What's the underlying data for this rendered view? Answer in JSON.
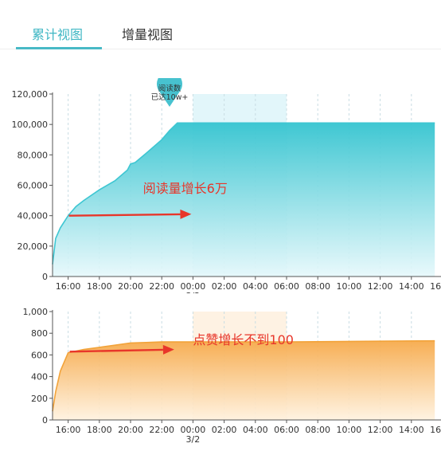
{
  "tabs": [
    {
      "label": "累计视图",
      "active": true
    },
    {
      "label": "增量视图",
      "active": false
    }
  ],
  "colors": {
    "accent": "#48b9c6",
    "reads_line": "#3ec6d2",
    "likes_line": "#f2a33a",
    "arrow": "#e8362a"
  },
  "chart_data": [
    {
      "type": "area",
      "series": [
        {
          "name": "阅读数"
        }
      ],
      "ylim": [
        0,
        120000
      ],
      "y_ticks": [
        "0",
        "20,000",
        "40,000",
        "60,000",
        "80,000",
        "100,000",
        "120,000"
      ],
      "x_ticks": [
        "16:00",
        "18:00",
        "20:00",
        "22:00",
        "00:00",
        "02:00",
        "04:00",
        "06:00",
        "08:00",
        "10:00",
        "12:00",
        "14:00",
        "16:00"
      ],
      "date_label": "3/2",
      "x": [
        15.0,
        15.2,
        15.5,
        16.0,
        16.5,
        17.0,
        18.0,
        19.0,
        19.8,
        20.0,
        20.3,
        21.0,
        22.0,
        22.5,
        23.0,
        24.0,
        30.0,
        39.5
      ],
      "values": [
        8000,
        25000,
        32000,
        40000,
        46000,
        50000,
        57000,
        63000,
        70000,
        74000,
        75000,
        81000,
        90000,
        96000,
        101000,
        101000,
        101000,
        101000
      ],
      "highlight_band": [
        24.0,
        30.0
      ],
      "pin": {
        "line1": "阅读数",
        "line2": "已达10w+"
      },
      "annotation": "阅读量增长6万"
    },
    {
      "type": "area",
      "series": [
        {
          "name": "点赞"
        }
      ],
      "ylim": [
        0,
        1000
      ],
      "y_ticks": [
        "0",
        "200",
        "400",
        "600",
        "800",
        "1,000"
      ],
      "x_ticks": [
        "16:00",
        "18:00",
        "20:00",
        "22:00",
        "00:00",
        "02:00",
        "04:00",
        "06:00",
        "08:00",
        "10:00",
        "12:00",
        "14:00",
        "16:00"
      ],
      "date_label": "3/2",
      "x": [
        15.0,
        15.2,
        15.5,
        16.0,
        17.0,
        18.0,
        19.0,
        20.0,
        21.0,
        22.0,
        24.0,
        30.0,
        39.5
      ],
      "values": [
        80,
        260,
        450,
        620,
        650,
        670,
        690,
        710,
        715,
        720,
        720,
        720,
        730
      ],
      "highlight_band": [
        24.0,
        30.0
      ],
      "annotation": "点赞增长不到100"
    }
  ]
}
